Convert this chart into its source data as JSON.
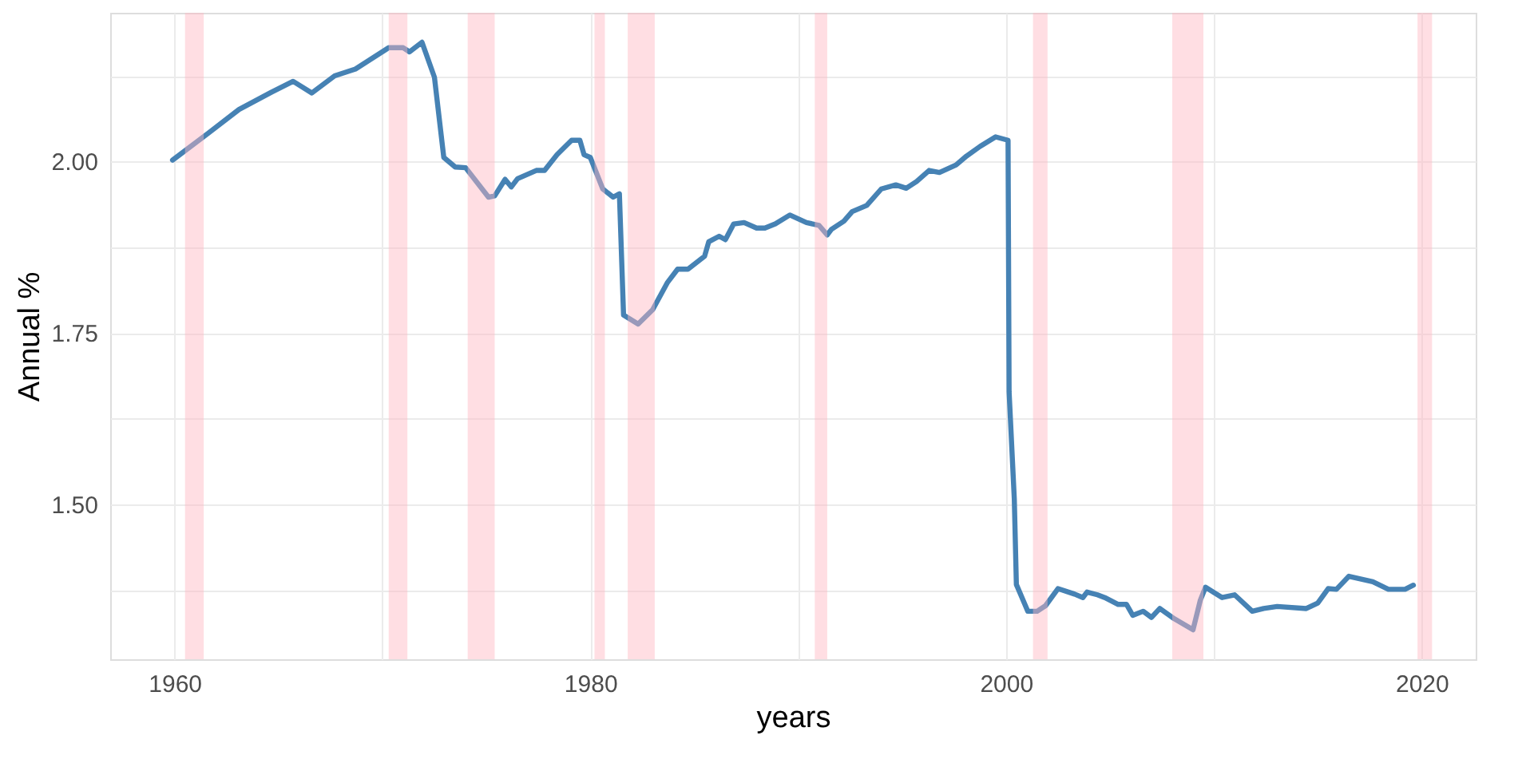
{
  "chart_data": {
    "type": "line",
    "xlabel": "years",
    "ylabel": "Annual %",
    "xlim": [
      1956.9,
      2022.6
    ],
    "ylim": [
      1.274,
      2.217
    ],
    "xticks": [
      1960,
      {
        "value": 1970,
        "label": null
      },
      1980,
      {
        "value": 1990,
        "label": null
      },
      2000,
      {
        "value": 2010,
        "label": null
      },
      2020
    ],
    "yticks": [
      {
        "value": 1.375,
        "label": null
      },
      {
        "value": 1.5,
        "label": "1.50"
      },
      {
        "value": 1.625,
        "label": null
      },
      {
        "value": 1.75,
        "label": "1.75"
      },
      {
        "value": 1.875,
        "label": null
      },
      {
        "value": 2.0,
        "label": "2.00"
      },
      {
        "value": 2.125,
        "label": null
      }
    ],
    "grid": true,
    "legend": false,
    "marker": "none",
    "line_style": "solid",
    "series": [
      {
        "color": "#4682b4",
        "x": [
          1959.9,
          1961.6,
          1963.1,
          1964.65,
          1965.7,
          1966.6,
          1967.7,
          1968.7,
          1970.3,
          1971.0,
          1971.3,
          1971.9,
          1972.5,
          1972.95,
          1973.5,
          1974.0,
          1975.1,
          1975.4,
          1975.9,
          1976.2,
          1976.5,
          1977.4,
          1977.8,
          1978.4,
          1979.1,
          1979.5,
          1979.7,
          1980.0,
          1980.6,
          1981.1,
          1981.4,
          1981.6,
          1982.3,
          1983.0,
          1983.7,
          1984.2,
          1984.7,
          1985.5,
          1985.7,
          1986.2,
          1986.5,
          1986.9,
          1987.4,
          1988.0,
          1988.4,
          1988.9,
          1989.6,
          1990.4,
          1991.0,
          1991.4,
          1991.6,
          1992.2,
          1992.6,
          1993.3,
          1994.0,
          1994.7,
          1995.2,
          1995.7,
          1996.3,
          1996.8,
          1997.6,
          1998.1,
          1998.75,
          1999.5,
          2000.1,
          2000.15,
          2000.4,
          2000.5,
          2001.05,
          2001.5,
          2001.9,
          2002.5,
          2003.3,
          2003.7,
          2003.9,
          2004.4,
          2004.75,
          2005.4,
          2005.8,
          2006.1,
          2006.6,
          2007.0,
          2007.4,
          2008.1,
          2009.0,
          2009.35,
          2009.6,
          2010.4,
          2011.0,
          2011.85,
          2012.4,
          2013.05,
          2014.45,
          2015.0,
          2015.5,
          2015.9,
          2016.5,
          2017.65,
          2018.4,
          2019.2,
          2019.6
        ],
        "values": [
          2.002,
          2.041,
          2.076,
          2.101,
          2.117,
          2.1,
          2.125,
          2.135,
          2.166,
          2.166,
          2.16,
          2.174,
          2.123,
          2.006,
          1.992,
          1.991,
          1.948,
          1.95,
          1.974,
          1.963,
          1.975,
          1.987,
          1.987,
          2.01,
          2.031,
          2.031,
          2.01,
          2.006,
          1.96,
          1.948,
          1.953,
          1.776,
          1.763,
          1.784,
          1.823,
          1.843,
          1.843,
          1.862,
          1.883,
          1.891,
          1.886,
          1.909,
          1.911,
          1.903,
          1.903,
          1.909,
          1.922,
          1.911,
          1.907,
          1.893,
          1.901,
          1.913,
          1.927,
          1.936,
          1.96,
          1.966,
          1.961,
          1.971,
          1.987,
          1.984,
          1.995,
          2.008,
          2.022,
          2.036,
          2.031,
          1.664,
          1.508,
          1.383,
          1.344,
          1.344,
          1.352,
          1.377,
          1.369,
          1.364,
          1.372,
          1.368,
          1.364,
          1.354,
          1.354,
          1.338,
          1.344,
          1.335,
          1.348,
          1.333,
          1.317,
          1.36,
          1.379,
          1.364,
          1.368,
          1.344,
          1.348,
          1.351,
          1.348,
          1.356,
          1.377,
          1.376,
          1.395,
          1.387,
          1.376,
          1.376,
          1.382
        ]
      }
    ],
    "bands": [
      {
        "axis": "x",
        "from": 1960.5,
        "to": 1961.4,
        "color": "#ffb6c1"
      },
      {
        "axis": "x",
        "from": 1970.3,
        "to": 1971.2,
        "color": "#ffb6c1"
      },
      {
        "axis": "x",
        "from": 1974.1,
        "to": 1975.4,
        "color": "#ffb6c1"
      },
      {
        "axis": "x",
        "from": 1980.2,
        "to": 1980.7,
        "color": "#ffb6c1"
      },
      {
        "axis": "x",
        "from": 1981.8,
        "to": 1983.1,
        "color": "#ffb6c1"
      },
      {
        "axis": "x",
        "from": 1990.8,
        "to": 1991.4,
        "color": "#ffb6c1"
      },
      {
        "axis": "x",
        "from": 2001.3,
        "to": 2002.0,
        "color": "#ffb6c1"
      },
      {
        "axis": "x",
        "from": 2008.0,
        "to": 2009.5,
        "color": "#ffb6c1"
      },
      {
        "axis": "x",
        "from": 2019.8,
        "to": 2020.5,
        "color": "#ffb6c1"
      }
    ]
  }
}
